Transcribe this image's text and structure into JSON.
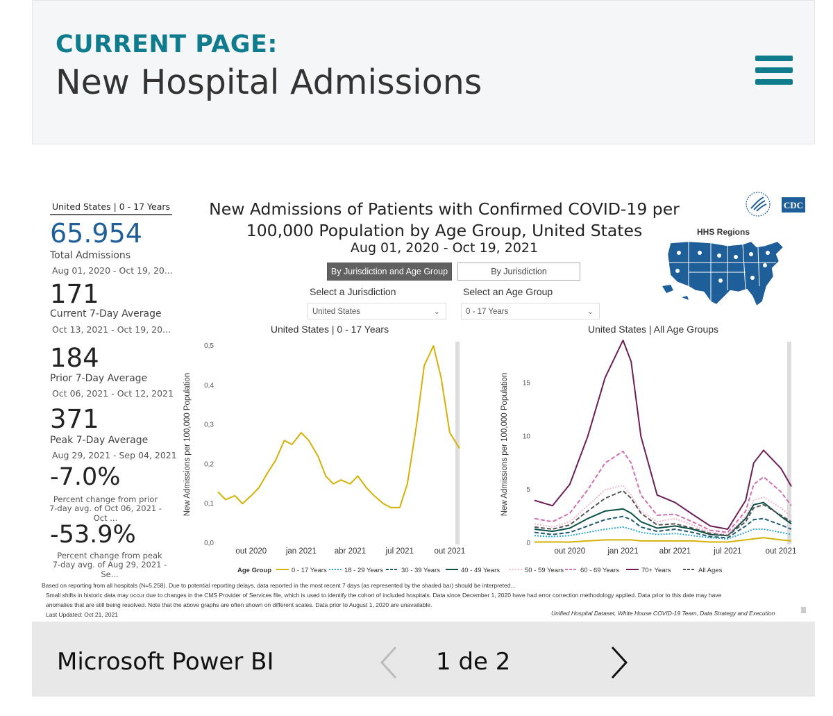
{
  "header": {
    "current_label": "CURRENT PAGE:",
    "page_title": "New Hospital Admissions"
  },
  "kpi": {
    "panel_title": "United States | 0 - 17 Years",
    "total_value": "65.954",
    "total_label": "Total Admissions",
    "total_dates": "Aug 01, 2020 - Oct 19, 20...",
    "current_value": "171",
    "current_label": "Current 7-Day Average",
    "current_dates": "Oct 13, 2021 - Oct 19, 20...",
    "prior_value": "184",
    "prior_label": "Prior 7-Day Average",
    "prior_dates": "Oct 06, 2021 - Oct 12, 2021",
    "peak_value": "371",
    "peak_label": "Peak 7-Day Average",
    "peak_dates": "Aug 29, 2021 - Sep 04, 2021",
    "pct_prior_value": "-7.0%",
    "pct_prior_line1": "Percent change from prior",
    "pct_prior_line2": "7-day avg. of Oct 06, 2021 - Oct ...",
    "pct_peak_value": "-53.9%",
    "pct_peak_line1": "Percent change from peak",
    "pct_peak_line2": "7-day avg. of Aug 29, 2021 - Se..."
  },
  "main": {
    "title_line1": "New Admissions of Patients with Confirmed COVID-19 per",
    "title_line2": "100,000 Population by Age Group, United States",
    "date_range": "Aug 01, 2020 - Oct 19, 2021",
    "btn_jur_age": "By Jurisdiction and Age Group",
    "btn_jur": "By Jurisdiction",
    "select_jur_label": "Select a Jurisdiction",
    "select_jur_value": "United States",
    "select_age_label": "Select an Age Group",
    "select_age_value": "0 - 17 Years",
    "hhs_regions": "HHS Regions",
    "cdc": "CDC",
    "legend_title": "Age Group"
  },
  "colors": {
    "teal": "#0e7c8c",
    "accent_blue": "#1f5f99"
  },
  "chart_data": [
    {
      "type": "line",
      "title": "United States | 0 - 17 Years",
      "ylabel": "New Admissions per 100,000 Population",
      "xlabel": "",
      "x_tick_labels": [
        "out 2020",
        "jan 2021",
        "abr 2021",
        "jul 2021",
        "out 2021"
      ],
      "y_tick_labels": [
        "0,0",
        "0,1",
        "0,2",
        "0,3",
        "0,4",
        "0,5"
      ],
      "ylim": [
        0,
        0.5
      ],
      "x": [
        "2020-08-01",
        "2020-08-15",
        "2020-09-01",
        "2020-09-15",
        "2020-10-01",
        "2020-10-15",
        "2020-11-01",
        "2020-11-15",
        "2020-12-01",
        "2020-12-15",
        "2021-01-01",
        "2021-01-15",
        "2021-02-01",
        "2021-02-15",
        "2021-03-01",
        "2021-03-15",
        "2021-04-01",
        "2021-04-15",
        "2021-05-01",
        "2021-05-15",
        "2021-06-01",
        "2021-06-15",
        "2021-07-01",
        "2021-07-15",
        "2021-08-01",
        "2021-08-15",
        "2021-09-01",
        "2021-09-15",
        "2021-10-01",
        "2021-10-19"
      ],
      "series": [
        {
          "name": "0 - 17 Years",
          "color": "#d4b106",
          "values": [
            0.13,
            0.11,
            0.12,
            0.1,
            0.12,
            0.14,
            0.18,
            0.21,
            0.26,
            0.25,
            0.28,
            0.26,
            0.22,
            0.17,
            0.15,
            0.16,
            0.15,
            0.17,
            0.14,
            0.12,
            0.1,
            0.09,
            0.09,
            0.15,
            0.3,
            0.45,
            0.5,
            0.42,
            0.28,
            0.24
          ]
        }
      ]
    },
    {
      "type": "line",
      "title": "United States | All Age Groups",
      "ylabel": "New Admissions per 100,000 Population",
      "xlabel": "",
      "x_tick_labels": [
        "out 2020",
        "jan 2021",
        "abr 2021",
        "jul 2021",
        "out 2021"
      ],
      "y_tick_labels": [
        "0",
        "5",
        "10",
        "15"
      ],
      "ylim": [
        0,
        19
      ],
      "x": [
        "2020-08-01",
        "2020-09-01",
        "2020-10-01",
        "2020-11-01",
        "2020-12-01",
        "2021-01-01",
        "2021-01-15",
        "2021-02-01",
        "2021-03-01",
        "2021-04-01",
        "2021-05-01",
        "2021-06-01",
        "2021-07-01",
        "2021-08-01",
        "2021-08-15",
        "2021-09-01",
        "2021-10-01",
        "2021-10-19"
      ],
      "series": [
        {
          "name": "0 - 17 Years",
          "color": "#d4b106",
          "dash": "solid",
          "values": [
            0.1,
            0.1,
            0.1,
            0.2,
            0.3,
            0.3,
            0.3,
            0.2,
            0.2,
            0.2,
            0.2,
            0.1,
            0.1,
            0.3,
            0.4,
            0.5,
            0.3,
            0.2
          ]
        },
        {
          "name": "18 - 29 Years",
          "color": "#28a8c8",
          "dash": "dot",
          "values": [
            0.7,
            0.6,
            0.7,
            1.0,
            1.3,
            1.5,
            1.3,
            1.0,
            0.8,
            0.9,
            0.7,
            0.5,
            0.4,
            1.0,
            1.3,
            1.3,
            1.0,
            0.8
          ]
        },
        {
          "name": "30 - 39 Years",
          "color": "#1e5a6e",
          "dash": "dash",
          "values": [
            1.0,
            0.8,
            1.0,
            1.6,
            2.2,
            2.5,
            2.2,
            1.5,
            1.1,
            1.3,
            1.0,
            0.6,
            0.5,
            1.6,
            2.2,
            2.3,
            1.7,
            1.3
          ]
        },
        {
          "name": "40 - 49 Years",
          "color": "#0b4f45",
          "dash": "solid",
          "values": [
            1.3,
            1.1,
            1.4,
            2.3,
            3.0,
            3.2,
            2.8,
            2.0,
            1.4,
            1.6,
            1.3,
            0.8,
            0.7,
            2.3,
            3.6,
            3.8,
            2.5,
            1.8
          ]
        },
        {
          "name": "50 - 59 Years",
          "color": "#f3b6d0",
          "dash": "dot",
          "values": [
            1.8,
            1.5,
            2.0,
            3.5,
            5.0,
            5.4,
            4.5,
            3.0,
            2.0,
            2.3,
            1.7,
            1.0,
            0.8,
            2.5,
            4.0,
            4.3,
            3.3,
            2.5
          ]
        },
        {
          "name": "60 - 69 Years",
          "color": "#d070b0",
          "dash": "dash",
          "values": [
            2.3,
            2.0,
            2.8,
            5.0,
            7.5,
            8.6,
            7.5,
            4.5,
            2.6,
            2.7,
            2.0,
            1.2,
            1.0,
            3.0,
            5.5,
            6.2,
            4.8,
            3.5
          ]
        },
        {
          "name": "70+ Years",
          "color": "#6b1f56",
          "dash": "solid",
          "values": [
            4.0,
            3.5,
            5.5,
            10.0,
            15.5,
            19.0,
            17.0,
            10.0,
            4.5,
            3.8,
            2.7,
            1.6,
            1.3,
            4.0,
            7.5,
            8.7,
            7.0,
            5.3
          ]
        },
        {
          "name": "All Ages",
          "color": "#555555",
          "dash": "dash",
          "values": [
            1.5,
            1.3,
            1.7,
            3.0,
            4.2,
            4.9,
            4.2,
            2.8,
            1.7,
            1.8,
            1.4,
            0.9,
            0.7,
            2.0,
            3.3,
            3.6,
            2.6,
            2.0
          ]
        }
      ]
    }
  ],
  "notes": {
    "line1": "Based on reporting from all hospitals (N=5,258). Due to potential reporting delays, data reported in the most recent 7 days (as represented by the shaded bar) should be interpreted...",
    "line2": "Small shifts in historic data may occur due to changes in the CMS Provider of Services file, which is used to identify the cohort of included hospitals. Data since December 1, 2020 have had error correction methodology applied. Data prior to this date may have",
    "line3": "anomalies that are still being resolved. Note that the above graphs are often shown on different scales. Data prior to August 1, 2020 are unavailable.",
    "line4": "Last Updated: Oct 21, 2021",
    "source": "Unified Hospital Dataset, White House COVID-19 Team, Data Strategy and Execution"
  },
  "footer": {
    "brand": "Microsoft Power BI",
    "page_indicator": "1 de 2"
  }
}
